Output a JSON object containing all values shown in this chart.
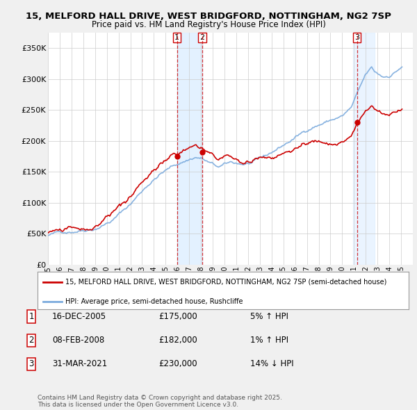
{
  "title_line1": "15, MELFORD HALL DRIVE, WEST BRIDGFORD, NOTTINGHAM, NG2 7SP",
  "title_line2": "Price paid vs. HM Land Registry's House Price Index (HPI)",
  "ytick_values": [
    0,
    50000,
    100000,
    150000,
    200000,
    250000,
    300000,
    350000
  ],
  "ylim": [
    0,
    375000
  ],
  "xlim_start": 1995.0,
  "xlim_end": 2026.0,
  "transactions": [
    {
      "num": 1,
      "date_label": "16-DEC-2005",
      "date_x": 2005.96,
      "price": 175000,
      "pct": "5%",
      "dir": "↑"
    },
    {
      "num": 2,
      "date_label": "08-FEB-2008",
      "date_x": 2008.11,
      "price": 182000,
      "pct": "1%",
      "dir": "↑"
    },
    {
      "num": 3,
      "date_label": "31-MAR-2021",
      "date_x": 2021.25,
      "price": 230000,
      "pct": "14%",
      "dir": "↓"
    }
  ],
  "background_color": "#f0f0f0",
  "plot_bg_color": "#ffffff",
  "legend_label_red": "15, MELFORD HALL DRIVE, WEST BRIDGFORD, NOTTINGHAM, NG2 7SP (semi-detached house)",
  "legend_label_blue": "HPI: Average price, semi-detached house, Rushcliffe",
  "footer": "Contains HM Land Registry data © Crown copyright and database right 2025.\nThis data is licensed under the Open Government Licence v3.0.",
  "red_color": "#cc0000",
  "blue_color": "#7aaadd",
  "shade_color": "#ddeeff",
  "xtick_years": [
    1995,
    1996,
    1997,
    1998,
    1999,
    2000,
    2001,
    2002,
    2003,
    2004,
    2005,
    2006,
    2007,
    2008,
    2009,
    2010,
    2011,
    2012,
    2013,
    2014,
    2015,
    2016,
    2017,
    2018,
    2019,
    2020,
    2021,
    2022,
    2023,
    2024,
    2025
  ]
}
